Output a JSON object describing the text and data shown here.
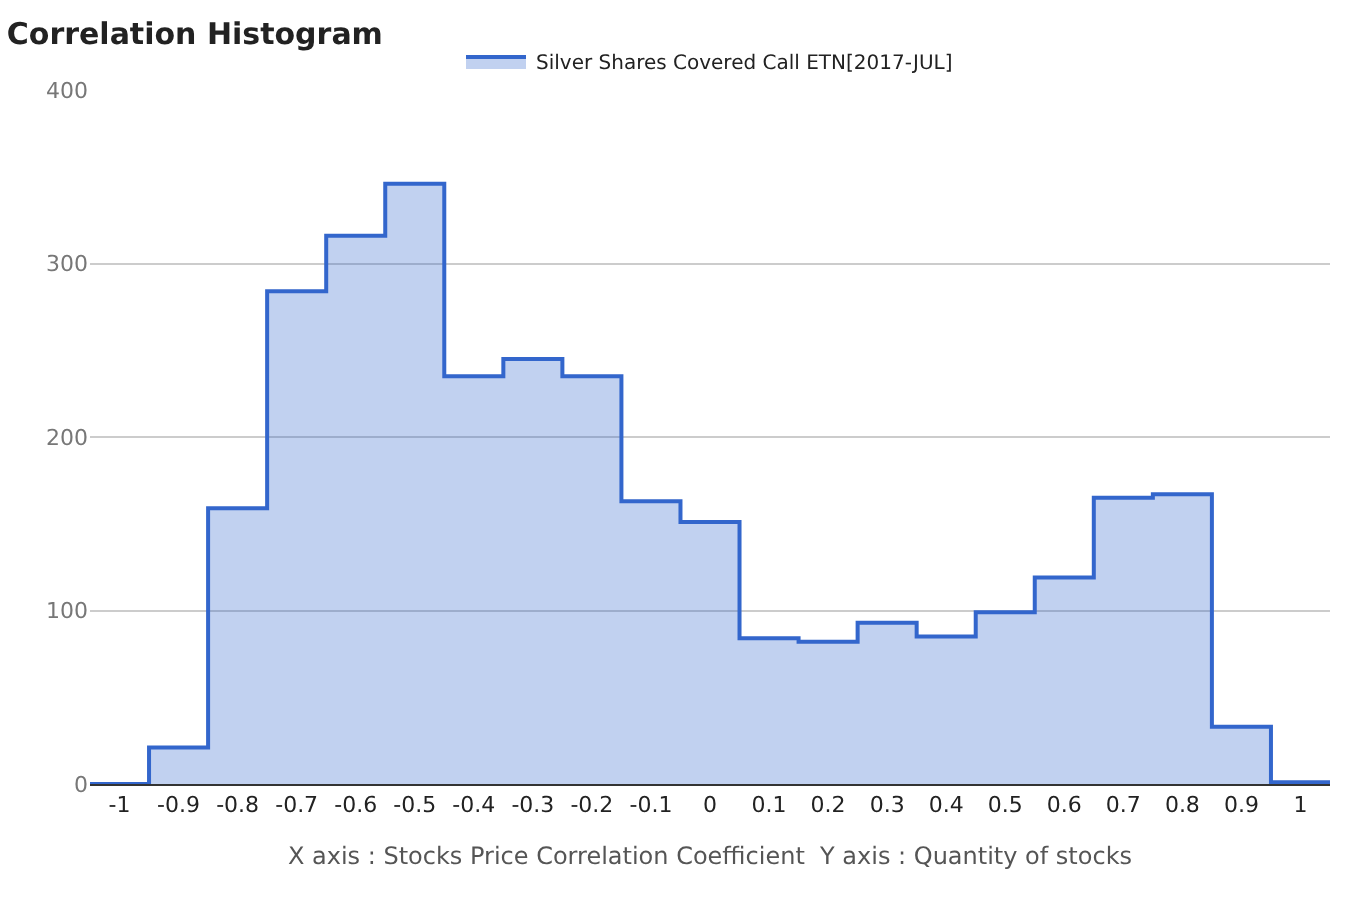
{
  "chart_data": {
    "type": "histogram",
    "title": "Correlation Histogram",
    "xlabel": "X axis : Stocks Price Correlation Coefficient  Y axis : Quantity of stocks",
    "bins": [
      -1.05,
      -0.95,
      -0.85,
      -0.75,
      -0.65,
      -0.55,
      -0.45,
      -0.35,
      -0.25,
      -0.15,
      -0.05,
      0.05,
      0.15,
      0.25,
      0.35,
      0.45,
      0.55,
      0.65,
      0.75,
      0.85,
      0.95,
      1.05
    ],
    "series": [
      {
        "name": "Silver Shares Covered Call ETN[2017-JUL]",
        "color": "#3366cc",
        "values": [
          0,
          21,
          159,
          284,
          316,
          346,
          235,
          245,
          235,
          163,
          151,
          84,
          82,
          93,
          85,
          99,
          119,
          165,
          167,
          33,
          1
        ]
      }
    ],
    "xlim": [
      -1.05,
      1.05
    ],
    "xticks": [
      -1,
      -0.9,
      -0.8,
      -0.7,
      -0.6,
      -0.5,
      -0.4,
      -0.3,
      -0.2,
      -0.1,
      0,
      0.1,
      0.2,
      0.3,
      0.4,
      0.5,
      0.6,
      0.7,
      0.8,
      0.9,
      1
    ],
    "ylim": [
      0,
      400
    ],
    "yticks": [
      0,
      100,
      200,
      300,
      400
    ],
    "grid": "y",
    "legend": "top"
  }
}
